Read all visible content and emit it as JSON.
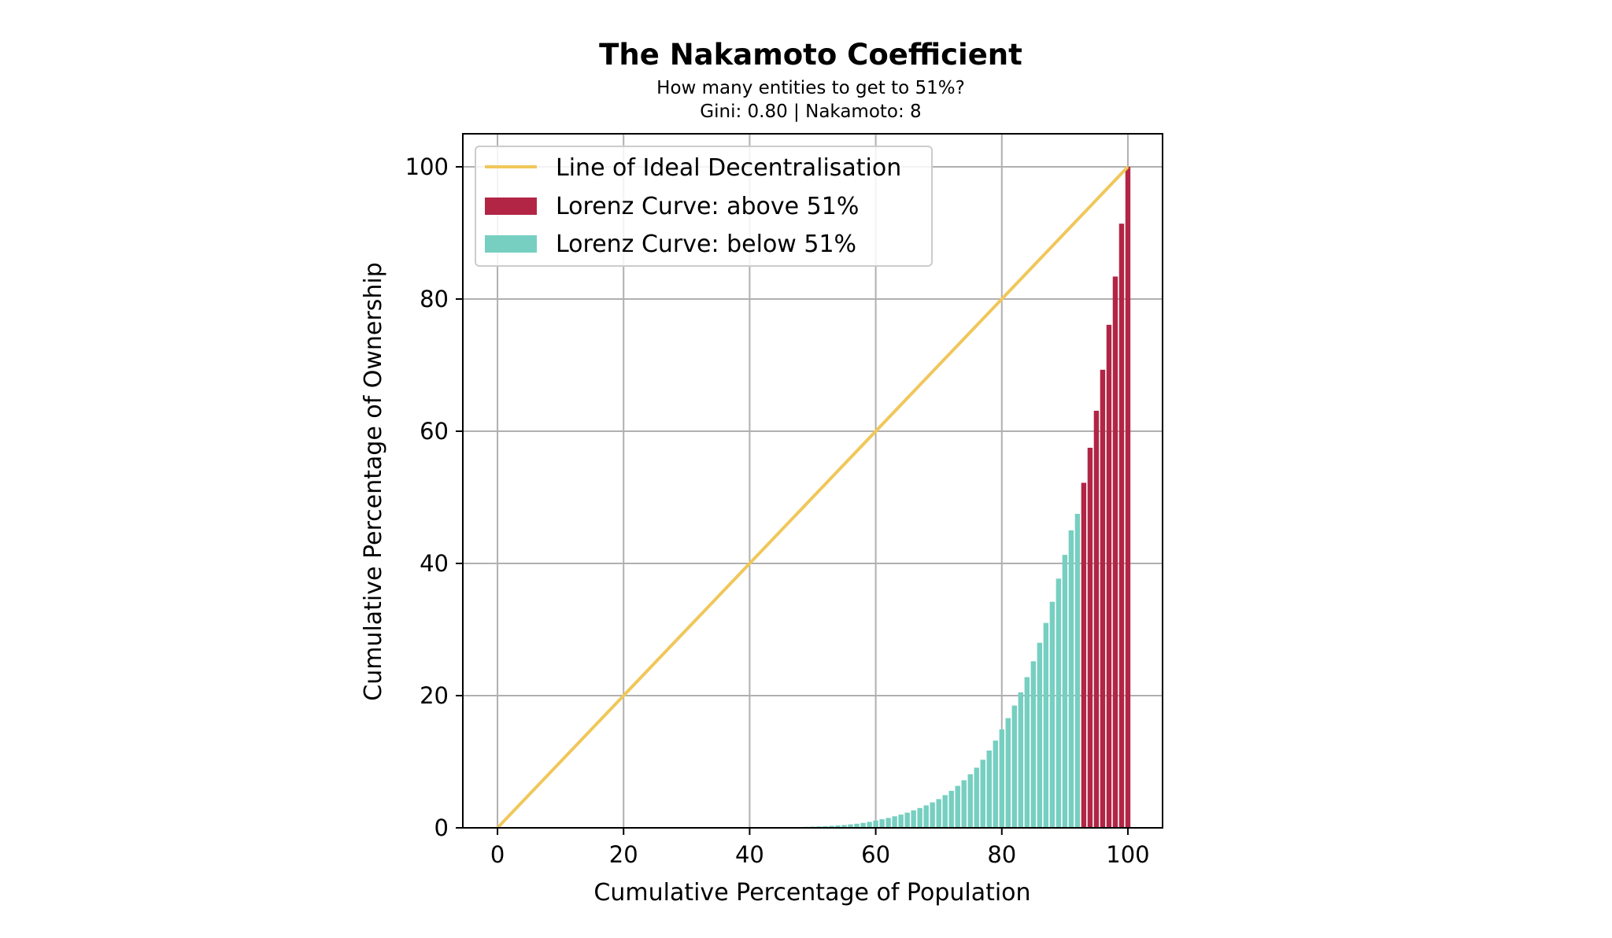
{
  "chart_data": {
    "type": "bar",
    "title": "The Nakamoto Coefficient",
    "subtitle_lines": [
      "How many entities to get to 51%?",
      "Gini: 0.80 | Nakamoto: 8"
    ],
    "xlabel": "Cumulative Percentage of Population",
    "ylabel": "Cumulative Percentage of Ownership",
    "xlim": [
      -5.5,
      105.5
    ],
    "ylim": [
      0,
      105
    ],
    "xticks": [
      0,
      20,
      40,
      60,
      80,
      100
    ],
    "yticks": [
      0,
      20,
      40,
      60,
      80,
      100
    ],
    "grid": true,
    "legend_position": "top-left",
    "ideal_line": {
      "name": "Line of Ideal Decentralisation",
      "color": "#f0c75a",
      "x": [
        0,
        100
      ],
      "y": [
        0,
        100
      ]
    },
    "series": [
      {
        "name": "Lorenz Curve: below 51%",
        "color": "#76cfc1",
        "x": [
          47,
          48,
          49,
          50,
          51,
          52,
          53,
          54,
          55,
          56,
          57,
          58,
          59,
          60,
          61,
          62,
          63,
          64,
          65,
          66,
          67,
          68,
          69,
          70,
          71,
          72,
          73,
          74,
          75,
          76,
          77,
          78,
          79,
          80,
          81,
          82,
          83,
          84,
          85,
          86,
          87,
          88,
          89,
          90,
          91,
          92
        ],
        "values": [
          0.1,
          0.12,
          0.15,
          0.18,
          0.21,
          0.25,
          0.3,
          0.36,
          0.43,
          0.52,
          0.62,
          0.75,
          0.9,
          1.1,
          1.3,
          1.5,
          1.75,
          2.0,
          2.3,
          2.65,
          3.0,
          3.4,
          3.85,
          4.35,
          4.95,
          5.6,
          6.35,
          7.2,
          8.1,
          9.1,
          10.3,
          11.7,
          13.2,
          14.9,
          16.6,
          18.5,
          20.5,
          22.8,
          25.2,
          28.0,
          31.0,
          34.2,
          37.7,
          41.3,
          45.0,
          47.5
        ]
      },
      {
        "name": "Lorenz Curve: above 51%",
        "color": "#b22545",
        "x": [
          93,
          94,
          95,
          96,
          97,
          98,
          99,
          100
        ],
        "values": [
          52.2,
          57.5,
          63.1,
          69.3,
          76.1,
          83.4,
          91.4,
          100.0
        ]
      }
    ]
  }
}
